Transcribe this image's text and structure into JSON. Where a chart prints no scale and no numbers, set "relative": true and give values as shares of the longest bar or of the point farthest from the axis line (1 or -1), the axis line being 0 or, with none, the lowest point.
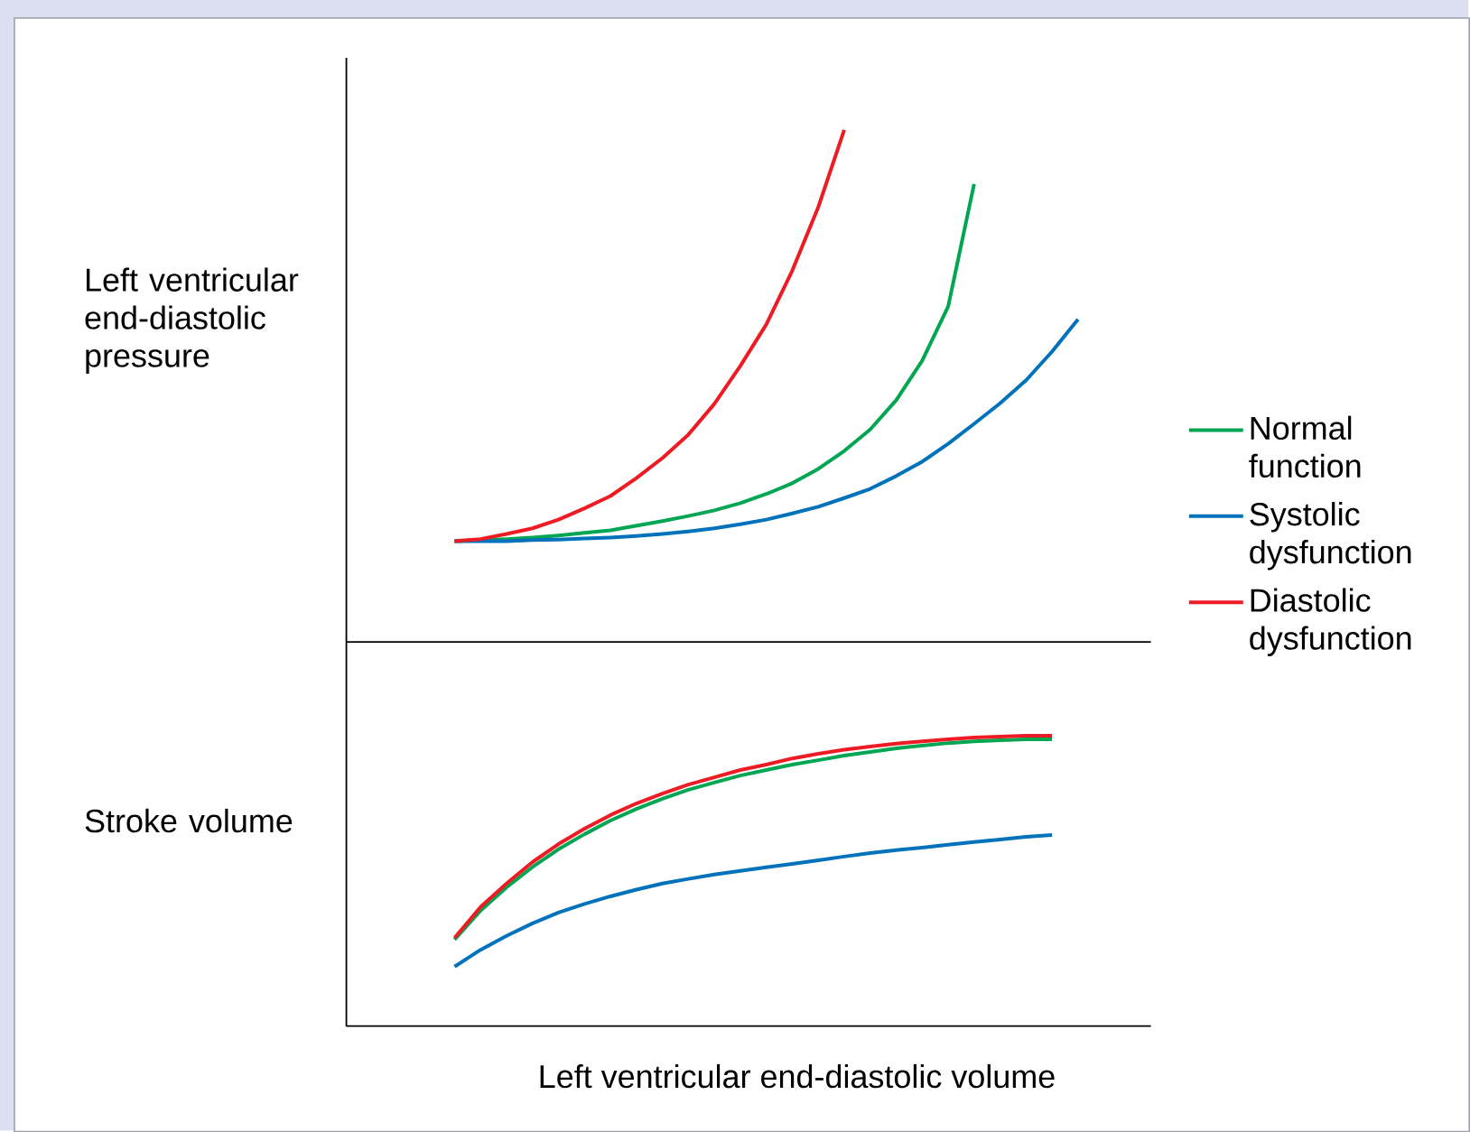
{
  "chart_data": [
    {
      "type": "line",
      "relative": true,
      "ylabel": "Left ventricular end-diastolic pressure",
      "tick_labels": false,
      "legend": "right",
      "categories": [
        null,
        null,
        null,
        null,
        null,
        null,
        null,
        null,
        null,
        null,
        null,
        null,
        null,
        null,
        null,
        null,
        null,
        null,
        null,
        null,
        null,
        null,
        null,
        null,
        null
      ],
      "series": [
        {
          "name": "Normal function",
          "color": "#00a651",
          "values": [
            0.197,
            0.199,
            0.201,
            0.204,
            0.208,
            0.213,
            0.218,
            0.227,
            0.236,
            0.246,
            0.257,
            0.271,
            0.289,
            0.31,
            0.338,
            0.373,
            0.415,
            0.472,
            0.549,
            0.655,
            0.894,
            null,
            null,
            null,
            null
          ]
        },
        {
          "name": "Systolic dysfunction",
          "color": "#0072bc",
          "values": [
            0.197,
            0.197,
            0.197,
            0.199,
            0.2,
            0.202,
            0.204,
            0.207,
            0.211,
            0.216,
            0.222,
            0.23,
            0.239,
            0.251,
            0.264,
            0.281,
            0.299,
            0.324,
            0.352,
            0.387,
            0.426,
            0.466,
            0.511,
            0.567,
            0.63
          ]
        },
        {
          "name": "Diastolic dysfunction",
          "color": "#ed1c24",
          "values": [
            0.197,
            0.201,
            0.211,
            0.222,
            0.239,
            0.261,
            0.285,
            0.32,
            0.359,
            0.405,
            0.465,
            0.539,
            0.62,
            0.725,
            0.849,
            1,
            null,
            null,
            null,
            null,
            null,
            null,
            null,
            null,
            null
          ]
        }
      ]
    },
    {
      "type": "line",
      "relative": true,
      "ylabel": "Stroke volume",
      "xlabel": "Left ventricular end-diastolic volume",
      "tick_labels": false,
      "categories": [
        null,
        null,
        null,
        null,
        null,
        null,
        null,
        null,
        null,
        null,
        null,
        null,
        null,
        null,
        null,
        null,
        null,
        null,
        null,
        null,
        null,
        null,
        null,
        null,
        null
      ],
      "series": [
        {
          "color": "#00a651",
          "values": [
            0.298,
            0.398,
            0.478,
            0.548,
            0.609,
            0.661,
            0.708,
            0.748,
            0.783,
            0.814,
            0.839,
            0.863,
            0.882,
            0.901,
            0.916,
            0.932,
            0.944,
            0.957,
            0.966,
            0.975,
            0.981,
            0.985,
            0.988,
            0.988,
            null
          ]
        },
        {
          "color": "#0072bc",
          "values": [
            0.205,
            0.263,
            0.311,
            0.354,
            0.391,
            0.421,
            0.447,
            0.47,
            0.491,
            0.507,
            0.522,
            0.535,
            0.547,
            0.559,
            0.571,
            0.584,
            0.596,
            0.606,
            0.615,
            0.625,
            0.634,
            0.643,
            0.652,
            0.658,
            null
          ]
        },
        {
          "color": "#ed1c24",
          "values": [
            0.304,
            0.41,
            0.491,
            0.565,
            0.627,
            0.68,
            0.727,
            0.767,
            0.801,
            0.832,
            0.857,
            0.882,
            0.901,
            0.922,
            0.938,
            0.952,
            0.963,
            0.973,
            0.981,
            0.988,
            0.994,
            0.997,
            1,
            1,
            null
          ]
        }
      ]
    }
  ]
}
